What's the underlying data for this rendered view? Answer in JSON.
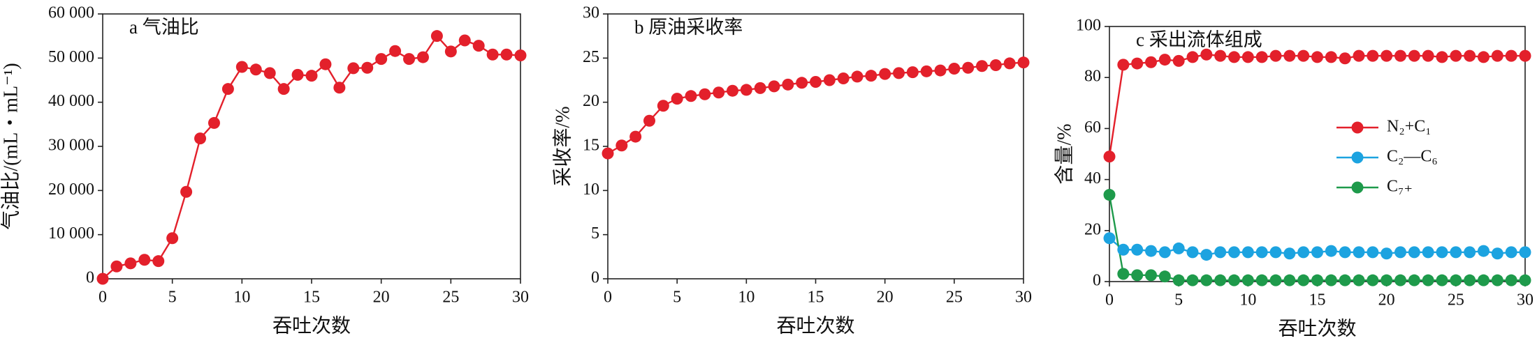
{
  "chart_data": [
    {
      "type": "line",
      "title": "a 气油比",
      "xlabel": "吞吐次数",
      "ylabel": "气油比/(mL・mL⁻¹)",
      "x": [
        0,
        1,
        2,
        3,
        4,
        5,
        6,
        7,
        8,
        9,
        10,
        11,
        12,
        13,
        14,
        15,
        16,
        17,
        18,
        19,
        20,
        21,
        22,
        23,
        24,
        25,
        26,
        27,
        28,
        29,
        30
      ],
      "values": [
        0,
        2800,
        3500,
        4300,
        4000,
        9200,
        19700,
        31800,
        35300,
        43000,
        48000,
        47400,
        46600,
        43000,
        46200,
        46000,
        48600,
        43300,
        47700,
        47800,
        49800,
        51600,
        49800,
        50200,
        55000,
        51500,
        54000,
        52800,
        50800,
        50800,
        50600
      ],
      "color": "#e3202b",
      "xlim": [
        0,
        30
      ],
      "xticks": [
        0,
        5,
        10,
        15,
        20,
        25,
        30
      ],
      "ylim": [
        0,
        60000
      ],
      "yticks": [
        0,
        {
          "value": 10000,
          "label": "10 000"
        },
        {
          "value": 20000,
          "label": "20 000"
        },
        {
          "value": 30000,
          "label": "30 000"
        },
        {
          "value": 40000,
          "label": "40 000"
        },
        {
          "value": 50000,
          "label": "50 000"
        },
        {
          "value": 60000,
          "label": "60 000"
        }
      ]
    },
    {
      "type": "line",
      "title": "b 原油采收率",
      "xlabel": "吞吐次数",
      "ylabel": "采收率/%",
      "x": [
        0,
        1,
        2,
        3,
        4,
        5,
        6,
        7,
        8,
        9,
        10,
        11,
        12,
        13,
        14,
        15,
        16,
        17,
        18,
        19,
        20,
        21,
        22,
        23,
        24,
        25,
        26,
        27,
        28,
        29,
        30
      ],
      "values": [
        14.2,
        15.1,
        16.1,
        17.9,
        19.6,
        20.4,
        20.7,
        20.9,
        21.1,
        21.3,
        21.4,
        21.6,
        21.8,
        22.0,
        22.2,
        22.3,
        22.5,
        22.7,
        22.9,
        23.0,
        23.2,
        23.3,
        23.4,
        23.5,
        23.6,
        23.8,
        23.9,
        24.1,
        24.2,
        24.4,
        24.5
      ],
      "color": "#e3202b",
      "xlim": [
        0,
        30
      ],
      "xticks": [
        0,
        5,
        10,
        15,
        20,
        25,
        30
      ],
      "ylim": [
        0,
        30
      ],
      "yticks": [
        0,
        5,
        10,
        15,
        20,
        25,
        30
      ]
    },
    {
      "type": "line",
      "title": "c 采出流体组成",
      "xlabel": "吞吐次数",
      "ylabel": "含量/%",
      "x": [
        0,
        1,
        2,
        3,
        4,
        5,
        6,
        7,
        8,
        9,
        10,
        11,
        12,
        13,
        14,
        15,
        16,
        17,
        18,
        19,
        20,
        21,
        22,
        23,
        24,
        25,
        26,
        27,
        28,
        29,
        30
      ],
      "series": [
        {
          "name": "N₂+C₁",
          "color": "#e3202b",
          "values": [
            49,
            85,
            85.5,
            86,
            87,
            86.5,
            88,
            89,
            88.5,
            88,
            88,
            88,
            88.5,
            88.5,
            88.5,
            88,
            88,
            87.5,
            88.5,
            88.5,
            88.5,
            88.5,
            88.5,
            88.5,
            88,
            88.5,
            88.5,
            88,
            88.5,
            88.5,
            88.5
          ]
        },
        {
          "name": "C₂—C₆",
          "color": "#1ca3e0",
          "values": [
            17,
            12.5,
            12.5,
            12,
            11.5,
            13,
            11.5,
            10.5,
            11.5,
            11.5,
            11.5,
            11.5,
            11.5,
            11,
            11.5,
            11.5,
            12,
            11.5,
            11.5,
            11.5,
            11,
            11.5,
            11.5,
            11.5,
            11.5,
            11.5,
            11.5,
            12,
            11,
            11.5,
            11.5
          ]
        },
        {
          "name": "C₇₊",
          "color": "#1e9a4b",
          "values": [
            34,
            3,
            2.5,
            2.5,
            2,
            0.5,
            0.5,
            0.5,
            0.5,
            0.5,
            0.5,
            0.5,
            0.5,
            0.5,
            0.5,
            0.5,
            0.5,
            0.5,
            0.5,
            0.5,
            0.5,
            0.5,
            0.5,
            0.5,
            0.5,
            0.5,
            0.5,
            0.5,
            0.5,
            0.5,
            0.5
          ]
        }
      ],
      "legend": "center right",
      "xlim": [
        0,
        30
      ],
      "xticks": [
        0,
        5,
        10,
        15,
        20,
        25,
        30
      ],
      "ylim": [
        0,
        100
      ],
      "yticks": [
        0,
        20,
        40,
        60,
        80,
        100
      ]
    }
  ]
}
